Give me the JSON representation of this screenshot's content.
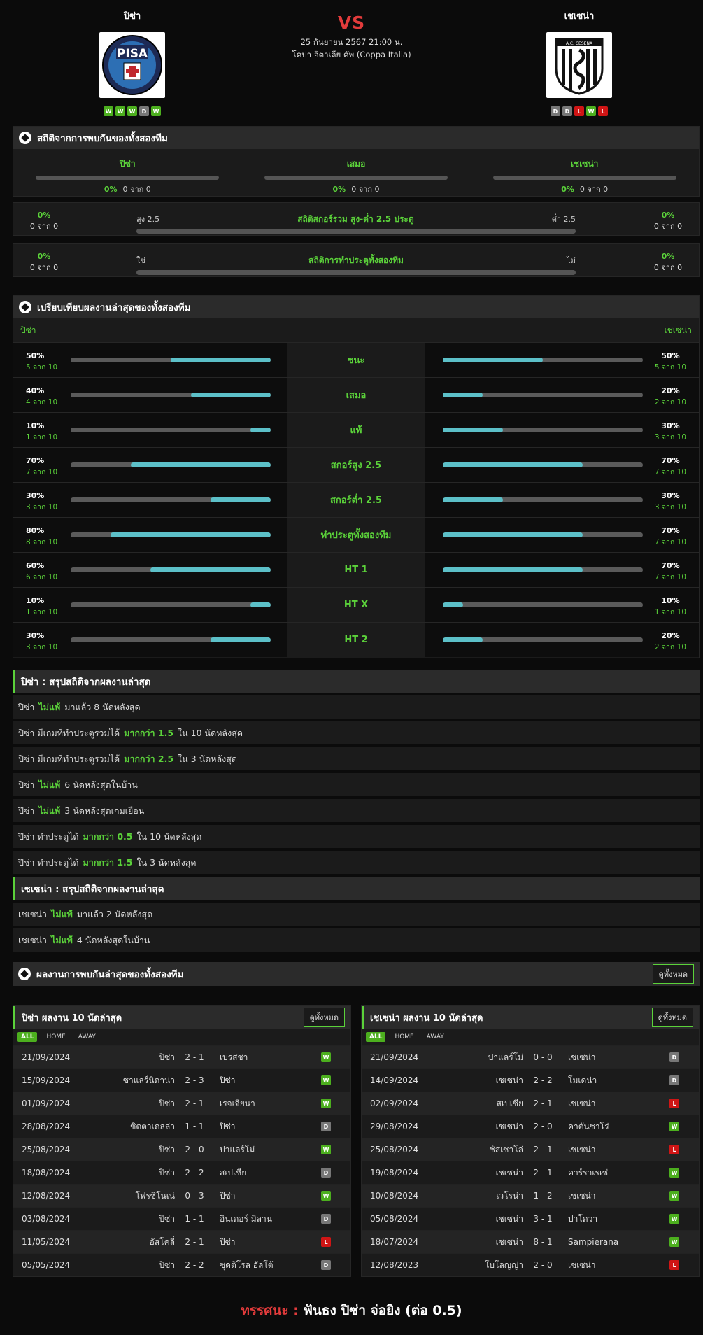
{
  "match": {
    "home": "ปิซ่า",
    "away": "เชเซน่า",
    "vs": "VS",
    "datetime": "25 กันยายน 2567 21:00 น.",
    "competition": "โคปา อิตาเลีย คัพ (Coppa Italia)",
    "home_form": [
      "W",
      "W",
      "W",
      "D",
      "W"
    ],
    "away_form": [
      "D",
      "D",
      "L",
      "W",
      "L"
    ],
    "home_logo_text": "PISA",
    "away_logo_text": "A.C. CESENA"
  },
  "h2h": {
    "title": "สถิติจากการพบกันของทั้งสองทีม",
    "cols": [
      {
        "label": "ปิซ่า",
        "pct": "0%",
        "of": "0 จาก 0"
      },
      {
        "label": "เสมอ",
        "pct": "0%",
        "of": "0 จาก 0"
      },
      {
        "label": "เชเซน่า",
        "pct": "0%",
        "of": "0 จาก 0"
      }
    ],
    "ou": {
      "left_pct": "0%",
      "left_of": "0 จาก 0",
      "left_lbl": "สูง 2.5",
      "center": "สถิติสกอร์รวม สูง-ต่ำ 2.5 ประตู",
      "right_lbl": "ต่ำ 2.5",
      "right_pct": "0%",
      "right_of": "0 จาก 0"
    },
    "btts": {
      "left_pct": "0%",
      "left_of": "0 จาก 0",
      "left_lbl": "ใช่",
      "center": "สถิติการทำประตูทั้งสองทีม",
      "right_lbl": "ไม่",
      "right_pct": "0%",
      "right_of": "0 จาก 0"
    }
  },
  "compare": {
    "title": "เปรียบเทียบผลงานล่าสุดของทั้งสองทีม",
    "home": "ปิซ่า",
    "away": "เชเซน่า",
    "rows": [
      {
        "label": "ชนะ",
        "hp": "50%",
        "hs": "5 จาก 10",
        "hv": 0.5,
        "ap": "50%",
        "as": "5 จาก 10",
        "av": 0.5
      },
      {
        "label": "เสมอ",
        "hp": "40%",
        "hs": "4 จาก 10",
        "hv": 0.4,
        "ap": "20%",
        "as": "2 จาก 10",
        "av": 0.2
      },
      {
        "label": "แพ้",
        "hp": "10%",
        "hs": "1 จาก 10",
        "hv": 0.1,
        "ap": "30%",
        "as": "3 จาก 10",
        "av": 0.3
      },
      {
        "label": "สกอร์สูง 2.5",
        "hp": "70%",
        "hs": "7 จาก 10",
        "hv": 0.7,
        "ap": "70%",
        "as": "7 จาก 10",
        "av": 0.7
      },
      {
        "label": "สกอร์ต่ำ 2.5",
        "hp": "30%",
        "hs": "3 จาก 10",
        "hv": 0.3,
        "ap": "30%",
        "as": "3 จาก 10",
        "av": 0.3
      },
      {
        "label": "ทำประตูทั้งสองทีม",
        "hp": "80%",
        "hs": "8 จาก 10",
        "hv": 0.8,
        "ap": "70%",
        "as": "7 จาก 10",
        "av": 0.7
      },
      {
        "label": "HT 1",
        "hp": "60%",
        "hs": "6 จาก 10",
        "hv": 0.6,
        "ap": "70%",
        "as": "7 จาก 10",
        "av": 0.7
      },
      {
        "label": "HT X",
        "hp": "10%",
        "hs": "1 จาก 10",
        "hv": 0.1,
        "ap": "10%",
        "as": "1 จาก 10",
        "av": 0.1
      },
      {
        "label": "HT 2",
        "hp": "30%",
        "hs": "3 จาก 10",
        "hv": 0.3,
        "ap": "20%",
        "as": "2 จาก 10",
        "av": 0.2
      }
    ]
  },
  "home_summary": {
    "title": "ปิซ่า : สรุปสถิติจากผลงานล่าสุด",
    "items": [
      [
        "ปิซ่า",
        "ไม่แพ้",
        "มาแล้ว 8 นัดหลังสุด"
      ],
      [
        "ปิซ่า  มีเกมที่ทำประตูรวมได้",
        "มากกว่า  1.5",
        "ใน 10 นัดหลังสุด"
      ],
      [
        "ปิซ่า  มีเกมที่ทำประตูรวมได้",
        "มากกว่า  2.5",
        "ใน 3 นัดหลังสุด"
      ],
      [
        "ปิซ่า",
        "ไม่แพ้",
        "6  นัดหลังสุดในบ้าน"
      ],
      [
        "ปิซ่า",
        "ไม่แพ้",
        "3  นัดหลังสุดเกมเยือน"
      ],
      [
        "ปิซ่า  ทำประตูได้",
        "มากกว่า  0.5",
        "ใน 10 นัดหลังสุด"
      ],
      [
        "ปิซ่า  ทำประตูได้",
        "มากกว่า  1.5",
        "ใน 3 นัดหลังสุด"
      ]
    ]
  },
  "away_summary": {
    "title": "เชเซน่า : สรุปสถิติจากผลงานล่าสุด",
    "items": [
      [
        "เชเซน่า",
        "ไม่แพ้",
        "มาแล้ว 2 นัดหลังสุด"
      ],
      [
        "เชเซน่า",
        "ไม่แพ้",
        "4  นัดหลังสุดในบ้าน"
      ]
    ]
  },
  "recent_h2h": {
    "title": "ผลงานการพบกันล่าสุดของทั้งสองทีม",
    "button": "ดูทั้งหมด"
  },
  "tabs": [
    "ALL",
    "HOME",
    "AWAY"
  ],
  "home_last": {
    "title": "ปิซ่า ผลงาน 10 นัดล่าสุด",
    "button": "ดูทั้งหมด",
    "rows": [
      [
        "21/09/2024",
        "ปิซ่า",
        "2 - 1",
        "เบรสชา",
        "W"
      ],
      [
        "15/09/2024",
        "ซาแลร์นิตาน่า",
        "2 - 3",
        "ปิซ่า",
        "W"
      ],
      [
        "01/09/2024",
        "ปิซ่า",
        "2 - 1",
        "เรจเจียนา",
        "W"
      ],
      [
        "28/08/2024",
        "ซิตตาเดลล่า",
        "1 - 1",
        "ปิซ่า",
        "D"
      ],
      [
        "25/08/2024",
        "ปิซ่า",
        "2 - 0",
        "ปาแลร์โม่",
        "W"
      ],
      [
        "18/08/2024",
        "ปิซ่า",
        "2 - 2",
        "สเปเซีย",
        "D"
      ],
      [
        "12/08/2024",
        "โฟรซิโนเน่",
        "0 - 3",
        "ปิซ่า",
        "W"
      ],
      [
        "03/08/2024",
        "ปิซ่า",
        "1 - 1",
        "อินเตอร์ มิลาน",
        "D"
      ],
      [
        "11/05/2024",
        "อัสโคลี่",
        "2 - 1",
        "ปิซ่า",
        "L"
      ],
      [
        "05/05/2024",
        "ปิซ่า",
        "2 - 2",
        "ซุดติโรล อัลโต้",
        "D"
      ]
    ]
  },
  "away_last": {
    "title": "เชเซน่า ผลงาน 10 นัดล่าสุด",
    "button": "ดูทั้งหมด",
    "rows": [
      [
        "21/09/2024",
        "ปาแลร์โม่",
        "0 - 0",
        "เชเซน่า",
        "D"
      ],
      [
        "14/09/2024",
        "เชเซน่า",
        "2 - 2",
        "โมเดน่า",
        "D"
      ],
      [
        "02/09/2024",
        "สเปเซีย",
        "2 - 1",
        "เชเซน่า",
        "L"
      ],
      [
        "29/08/2024",
        "เชเซน่า",
        "2 - 0",
        "คาตันซาโร่",
        "W"
      ],
      [
        "25/08/2024",
        "ซัสเซาโล่",
        "2 - 1",
        "เชเซน่า",
        "L"
      ],
      [
        "19/08/2024",
        "เชเซน่า",
        "2 - 1",
        "คาร์ราเรเซ่",
        "W"
      ],
      [
        "10/08/2024",
        "เวโรน่า",
        "1 - 2",
        "เชเซน่า",
        "W"
      ],
      [
        "05/08/2024",
        "เชเซน่า",
        "3 - 1",
        "ปาโดวา",
        "W"
      ],
      [
        "18/07/2024",
        "เชเซน่า",
        "8 - 1",
        "Sampierana",
        "W"
      ],
      [
        "12/08/2023",
        "โบโลญญ่า",
        "2 - 0",
        "เชเซน่า",
        "L"
      ]
    ]
  },
  "verdict": {
    "label": "ทรรศนะ :",
    "text": "ฟันธง ปิซ่า จ่อยิง (ต่อ 0.5)"
  }
}
